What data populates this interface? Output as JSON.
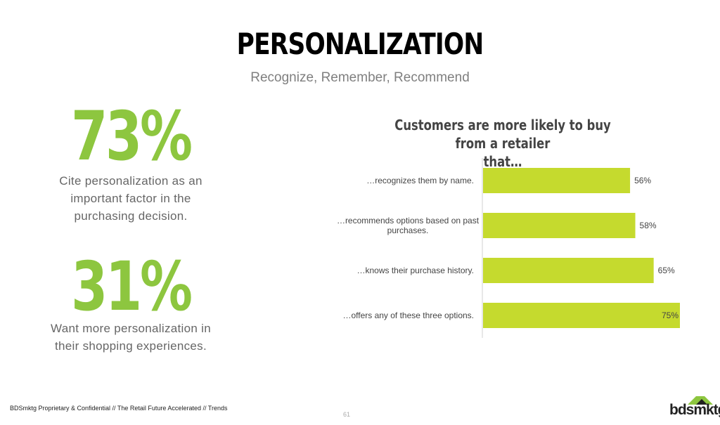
{
  "header": {
    "title": "PERSONALIZATION",
    "subtitle": "Recognize, Remember, Recommend"
  },
  "stats": [
    {
      "value": "73%",
      "text_lines": [
        "Cite personalization as an",
        "important factor in the",
        "purchasing decision."
      ]
    },
    {
      "value": "31%",
      "text_lines": [
        "Want more personalization in",
        "their shopping experiences."
      ]
    }
  ],
  "colors": {
    "accent": "#8dc63f",
    "bar": "#c5da2e"
  },
  "chart_data": {
    "type": "bar",
    "orientation": "horizontal",
    "title": "Customers are more likely to buy from a retailer that…",
    "title_lines": [
      "Customers are more likely to buy from a retailer",
      "that…"
    ],
    "categories": [
      [
        "…recognizes them by name."
      ],
      [
        "…recommends options based on past",
        "purchases."
      ],
      [
        "…knows their purchase history."
      ],
      [
        "…offers any of these three options."
      ]
    ],
    "values": [
      56,
      58,
      65,
      75
    ],
    "value_labels": [
      "56%",
      "58%",
      "65%",
      "75%"
    ],
    "xlim": [
      0,
      100
    ],
    "grid": false
  },
  "footer": {
    "text": "BDSmktg Proprietary & Confidential // The Retail Future Accelerated // Trends",
    "page_number": "61",
    "logo_text": "bdsmktg"
  }
}
